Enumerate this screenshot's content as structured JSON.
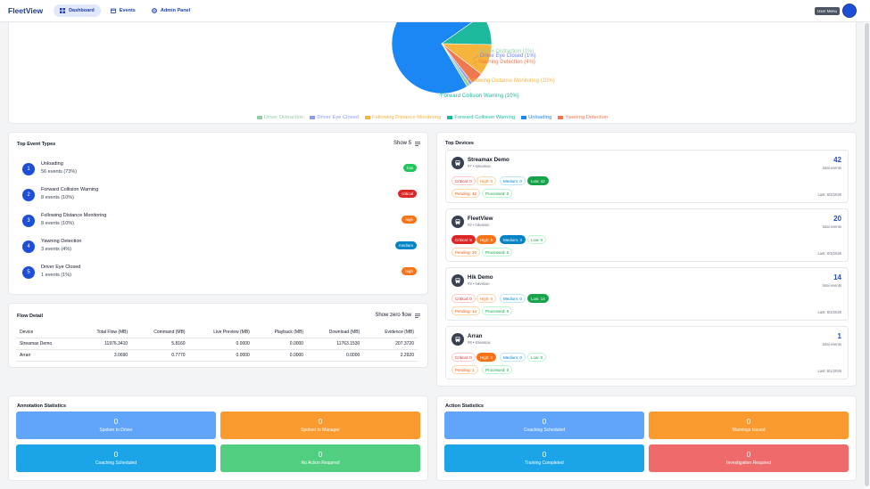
{
  "app": {
    "brand": "FleetView"
  },
  "nav": [
    {
      "label": "Dashboard"
    },
    {
      "label": "Events"
    },
    {
      "label": "Admin Panel"
    }
  ],
  "header": {
    "user_menu": "User Menu"
  },
  "pie": {
    "slices": [
      {
        "label": "Unloading",
        "value": 73,
        "color": "#1a87f5"
      },
      {
        "label": "Forward Collision Warning",
        "value": 10,
        "color": "#1db89e"
      },
      {
        "label": "Following Distance Monitoring",
        "value": 10,
        "color": "#f7b43c"
      },
      {
        "label": "Yawning Detection",
        "value": 4,
        "color": "#f0784e"
      },
      {
        "label": "Driver Eye Closed",
        "value": 1,
        "color": "#8b9cf0"
      },
      {
        "label": "Driver Distraction",
        "value": 1,
        "color": "#93cfa6"
      }
    ],
    "labels": [
      {
        "text": "Driver Distraction (1%)",
        "color": "#93cfa6"
      },
      {
        "text": "Driver Eye Closed (1%)",
        "color": "#6d7ff0"
      },
      {
        "text": "Yawning Detection (4%)",
        "color": "#f0784e"
      },
      {
        "text": "Following Distance Monitoring (10%)",
        "color": "#f7b43c"
      },
      {
        "text": "Forward Collision Warning (10%)",
        "color": "#1db89e"
      }
    ],
    "legend": [
      {
        "label": "Driver Distraction",
        "color": "#93cfa6"
      },
      {
        "label": "Driver Eye Closed",
        "color": "#8b9cf0"
      },
      {
        "label": "Following Distance Monitoring",
        "color": "#f7b43c"
      },
      {
        "label": "Forward Collision Warning",
        "color": "#1db89e"
      },
      {
        "label": "Unloading",
        "color": "#1a87f5"
      },
      {
        "label": "Yawning Detection",
        "color": "#f0784e"
      }
    ]
  },
  "top_events": {
    "title": "Top Event Types",
    "show_label": "Show 5",
    "items": [
      {
        "num": "1",
        "name": "Unloading",
        "count": "56 events (73%)",
        "severity": "low",
        "sev_color": "#22c55e"
      },
      {
        "num": "2",
        "name": "Forward Collision Warning",
        "count": "8 events (10%)",
        "severity": "critical",
        "sev_color": "#dc2626"
      },
      {
        "num": "3",
        "name": "Following Distance Monitoring",
        "count": "8 events (10%)",
        "severity": "high",
        "sev_color": "#f97316"
      },
      {
        "num": "4",
        "name": "Yawning Detection",
        "count": "3 events (4%)",
        "severity": "medium",
        "sev_color": "#0284c7"
      },
      {
        "num": "5",
        "name": "Driver Eye Closed",
        "count": "1 events (1%)",
        "severity": "high",
        "sev_color": "#f97316"
      }
    ]
  },
  "top_devices": {
    "title": "Top Devices",
    "total_label": "total events",
    "items": [
      {
        "name": "Streamax Demo",
        "sub": "#7 • streamax",
        "total": "42",
        "critical": "Critical: 0",
        "high": "High: 0",
        "medium": "Medium: 0",
        "low": "Low: 42",
        "pending": "Pending: 42",
        "processed": "Processed: 0",
        "last": "Last: 8/3/2026",
        "hl": "low"
      },
      {
        "name": "FleetView",
        "sub": "#2 • hikvision",
        "total": "20",
        "critical": "Critical: 8",
        "high": "High: 9",
        "medium": "Medium: 3",
        "low": "Low: 0",
        "pending": "Pending: 20",
        "processed": "Processed: 0",
        "last": "Last: 8/3/2026",
        "hl": "crit-high-med"
      },
      {
        "name": "Hik Demo",
        "sub": "#3 • hikvision",
        "total": "14",
        "critical": "Critical: 0",
        "high": "High: 0",
        "medium": "Medium: 0",
        "low": "Low: 14",
        "pending": "Pending: 14",
        "processed": "Processed: 0",
        "last": "Last: 8/3/2026",
        "hl": "low"
      },
      {
        "name": "Arran",
        "sub": "#8 • streamax",
        "total": "1",
        "critical": "Critical: 0",
        "high": "High: 1",
        "medium": "Medium: 0",
        "low": "Low: 0",
        "pending": "Pending: 1",
        "processed": "Processed: 0",
        "last": "Last: 8/1/2026",
        "hl": "high"
      }
    ]
  },
  "flow": {
    "title": "Flow Detail",
    "toggle_label": "Show zero flow",
    "columns": [
      "Device",
      "Total Flow (MB)",
      "Command (MB)",
      "Live Preview (MB)",
      "Playback (MB)",
      "Download (MB)",
      "Evidence (MB)"
    ],
    "rows": [
      [
        "Streamax Demo",
        "11976.3410",
        "5.8160",
        "0.0000",
        "0.0000",
        "11763.1530",
        "207.3720"
      ],
      [
        "Arran",
        "3.0690",
        "0.7770",
        "0.0000",
        "0.0000",
        "0.0000",
        "2.2920"
      ]
    ]
  },
  "annotation": {
    "title": "Annotation Statistics",
    "items": [
      {
        "value": "0",
        "label": "Spoken to Driver",
        "color": "#60a5fa"
      },
      {
        "value": "0",
        "label": "Spoken to Manager",
        "color": "#fb9a2e"
      },
      {
        "value": "0",
        "label": "Coaching Scheduled",
        "color": "#1ba4e8"
      },
      {
        "value": "0",
        "label": "No Action Required",
        "color": "#4fcf7f"
      }
    ]
  },
  "action": {
    "title": "Action Statistics",
    "items": [
      {
        "value": "0",
        "label": "Coaching Scheduled",
        "color": "#60a5fa"
      },
      {
        "value": "0",
        "label": "Warnings Issued",
        "color": "#fb9a2e"
      },
      {
        "value": "0",
        "label": "Training Completed",
        "color": "#1ba4e8"
      },
      {
        "value": "0",
        "label": "Investigation Required",
        "color": "#ef6b6b"
      }
    ]
  }
}
